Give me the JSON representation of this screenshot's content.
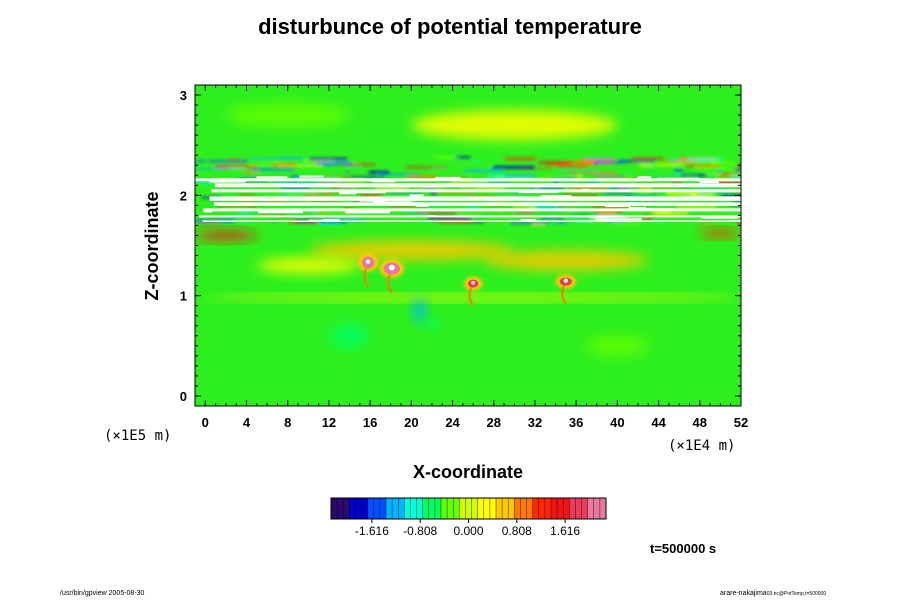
{
  "title": "disturbunce of potential temperature",
  "timestamp": "t=500000 s",
  "footer_left": "/usr/bin/gpview 2005-08-30",
  "footer_right": "arare-nakajima",
  "footer_right_sub": "03.nc@PotTemp,t=500000",
  "chart_data": {
    "type": "heatmap",
    "title": "disturbunce of potential temperature",
    "xlabel": "X-coordinate",
    "ylabel": "Z-coordinate",
    "x_unit": "(×1E4 m)",
    "y_unit": "(×1E5 m)",
    "xlim": [
      -1,
      52
    ],
    "ylim": [
      -0.1,
      3.1
    ],
    "x_ticks": [
      0,
      4,
      8,
      12,
      16,
      20,
      24,
      28,
      32,
      36,
      40,
      44,
      48,
      52
    ],
    "y_ticks": [
      0,
      1,
      2,
      3
    ],
    "colorbar": {
      "ticks": [
        -1.616,
        -0.808,
        0.0,
        0.808,
        1.616
      ],
      "tick_labels": [
        "-1.616",
        "-0.808",
        "0.000",
        "0.808",
        "1.616"
      ],
      "range": [
        -2.3,
        2.3
      ],
      "colors": [
        "#2a0a6e",
        "#0000c8",
        "#0050ff",
        "#00b4ff",
        "#00ffd8",
        "#00ff64",
        "#64ff00",
        "#d2ff00",
        "#ffff00",
        "#ffc800",
        "#ff7800",
        "#ff2800",
        "#f01414",
        "#e83c5a",
        "#e878a0"
      ]
    },
    "features": [
      {
        "x": 26,
        "z": 2.05,
        "dx": 27,
        "dz": 0.35,
        "value": "out of range"
      },
      {
        "x": 2,
        "z": 1.6,
        "dx": 3,
        "dz": 0.06,
        "value": 1.6
      },
      {
        "x": 15.8,
        "z": 1.33,
        "dx": 0.6,
        "dz": 0.06,
        "value": 2.0
      },
      {
        "x": 18.1,
        "z": 1.27,
        "dx": 0.8,
        "dz": 0.06,
        "value": 2.0
      },
      {
        "x": 26,
        "z": 1.12,
        "dx": 0.5,
        "dz": 0.04,
        "value": 1.9
      },
      {
        "x": 35,
        "z": 1.14,
        "dx": 0.6,
        "dz": 0.04,
        "value": 1.9
      },
      {
        "x": 20.8,
        "z": 0.85,
        "dx": 0.5,
        "dz": 0.12,
        "value": -1.6
      },
      {
        "x": 26,
        "z": 0.98,
        "dx": 26,
        "dz": 0.03,
        "value": 0.3
      }
    ]
  }
}
